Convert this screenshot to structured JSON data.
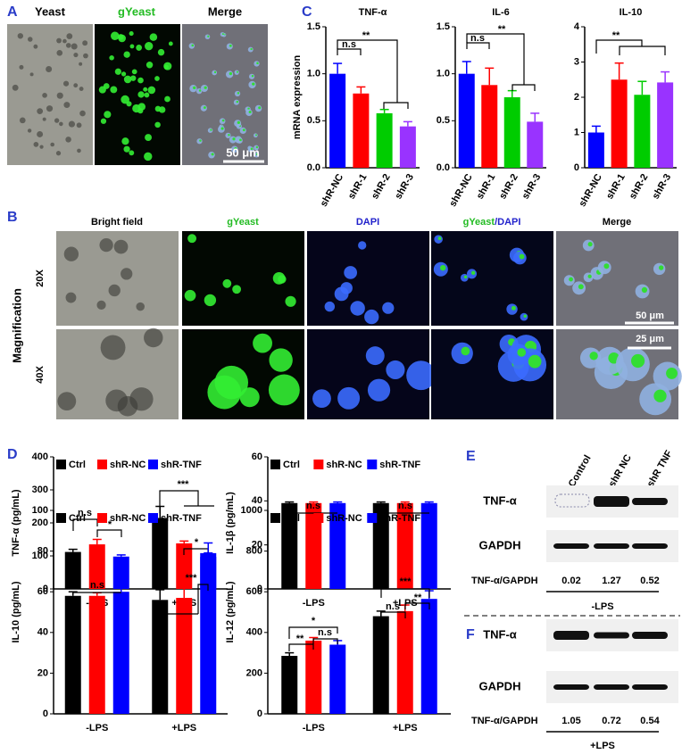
{
  "panels": {
    "A": "A",
    "B": "B",
    "C": "C",
    "D": "D",
    "E": "E",
    "F": "F"
  },
  "panel_a": {
    "labels": [
      "Yeast",
      "gYeast",
      "Merge"
    ],
    "scale": "50 μm"
  },
  "panel_b": {
    "columns": [
      "Bright field",
      "gYeast",
      "DAPI",
      "gYeast",
      "/DAPI",
      "Merge"
    ],
    "rows": [
      "20X",
      "40X"
    ],
    "row_title": "Magnification",
    "scales": [
      "50 μm",
      "25 μm"
    ]
  },
  "western_blot": {
    "lanes": [
      "Control",
      "shR NC",
      "shR TNF"
    ],
    "E": {
      "rows": [
        "TNF-α",
        "GAPDH"
      ],
      "ratio_label": "TNF-α/GAPDH",
      "ratios": [
        "0.02",
        "1.27",
        "0.52"
      ],
      "condition": "-LPS"
    },
    "F": {
      "rows": [
        "TNF-α",
        "GAPDH"
      ],
      "ratio_label": "TNF-α/GAPDH",
      "ratios": [
        "1.05",
        "0.72",
        "0.54"
      ],
      "condition": "+LPS"
    }
  },
  "chart_data": [
    {
      "type": "bar",
      "title": "TNF-α",
      "ylabel": "mRNA expression",
      "categories": [
        "shR-NC",
        "shR-1",
        "shR-2",
        "shR-3"
      ],
      "values": [
        1.0,
        0.79,
        0.58,
        0.44
      ],
      "errors": [
        0.11,
        0.07,
        0.04,
        0.05
      ],
      "colors": [
        "#0000ff",
        "#ff0000",
        "#00cc00",
        "#9933ff"
      ],
      "ylim": [
        0,
        1.5
      ],
      "yticks": [
        {
          "value": 0,
          "label": "0.0"
        },
        {
          "value": 0.5,
          "label": "0.5"
        },
        {
          "value": 1,
          "label": "1.0"
        },
        {
          "value": 1.5,
          "label": "1.5"
        }
      ],
      "annotations": [
        "n.s",
        "**"
      ]
    },
    {
      "type": "bar",
      "title": "IL-6",
      "categories": [
        "shR-NC",
        "shR-1",
        "shR-2",
        "shR-3"
      ],
      "values": [
        1.0,
        0.88,
        0.75,
        0.49
      ],
      "errors": [
        0.13,
        0.18,
        0.07,
        0.09
      ],
      "colors": [
        "#0000ff",
        "#ff0000",
        "#00cc00",
        "#9933ff"
      ],
      "ylim": [
        0,
        1.5
      ],
      "yticks": [
        {
          "value": 0,
          "label": "0.0"
        },
        {
          "value": 0.5,
          "label": "0.5"
        },
        {
          "value": 1,
          "label": "1.0"
        },
        {
          "value": 1.5,
          "label": "1.5"
        }
      ],
      "annotations": [
        "n.s",
        "**"
      ]
    },
    {
      "type": "bar",
      "title": "IL-10",
      "categories": [
        "shR-NC",
        "shR-1",
        "shR-2",
        "shR-3"
      ],
      "values": [
        1.0,
        2.5,
        2.07,
        2.42
      ],
      "errors": [
        0.18,
        0.47,
        0.38,
        0.3
      ],
      "colors": [
        "#0000ff",
        "#ff0000",
        "#00cc00",
        "#9933ff"
      ],
      "ylim": [
        0,
        4
      ],
      "yticks": [
        0,
        1,
        2,
        3,
        4
      ],
      "annotations": [
        "**"
      ]
    },
    {
      "type": "grouped_bar",
      "ylabel": "TNF-α (pg/mL)",
      "categories": [
        "-LPS",
        "+LPS"
      ],
      "series": [
        {
          "name": "Ctrl",
          "color": "#000000",
          "values": [
            112,
            215
          ],
          "errors": [
            8,
            35
          ]
        },
        {
          "name": "shR-NC",
          "color": "#ff0000",
          "values": [
            135,
            138
          ],
          "errors": [
            15,
            7
          ]
        },
        {
          "name": "shR-TNF",
          "color": "#0000ff",
          "values": [
            98,
            97
          ],
          "errors": [
            5,
            12
          ]
        }
      ],
      "ylim": [
        0,
        400
      ],
      "yticks": [
        0,
        100,
        200,
        300,
        400
      ],
      "annotations": [
        "n.s",
        "*",
        "***",
        "*"
      ]
    },
    {
      "type": "grouped_bar",
      "ylabel": "IL-1β (pg/mL)",
      "categories": [
        "-LPS",
        "+LPS"
      ],
      "series": [
        {
          "name": "Ctrl",
          "color": "#000000",
          "values": [
            39,
            39
          ],
          "errors": [
            0.5,
            0.5
          ]
        },
        {
          "name": "shR-NC",
          "color": "#ff0000",
          "values": [
            39,
            39
          ],
          "errors": [
            0.5,
            0.5
          ]
        },
        {
          "name": "shR-TNF",
          "color": "#0000ff",
          "values": [
            39,
            39
          ],
          "errors": [
            0.5,
            0.5
          ]
        }
      ],
      "ylim": [
        0,
        60
      ],
      "yticks": [
        0,
        20,
        40,
        60
      ],
      "annotations": [
        "n.s",
        "n.s"
      ]
    },
    {
      "type": "grouped_bar",
      "ylabel": "IL-10 (pg/mL)",
      "categories": [
        "-LPS",
        "+LPS"
      ],
      "series": [
        {
          "name": "Ctrl",
          "color": "#000000",
          "values": [
            58,
            56
          ],
          "errors": [
            2,
            5
          ]
        },
        {
          "name": "shR-NC",
          "color": "#ff0000",
          "values": [
            58,
            57
          ],
          "errors": [
            1.5,
            6
          ]
        },
        {
          "name": "shR-TNF",
          "color": "#0000ff",
          "values": [
            60,
            79
          ],
          "errors": [
            3,
            5
          ]
        }
      ],
      "ylim": [
        0,
        100
      ],
      "yticks": [
        0,
        20,
        40,
        60,
        80,
        100
      ],
      "annotations": [
        "n.s",
        "***"
      ]
    },
    {
      "type": "grouped_bar",
      "ylabel": "IL-12 (pg/mL)",
      "categories": [
        "-LPS",
        "+LPS"
      ],
      "series": [
        {
          "name": "Ctrl",
          "color": "#000000",
          "values": [
            285,
            480
          ],
          "errors": [
            15,
            25
          ]
        },
        {
          "name": "shR-NC",
          "color": "#ff0000",
          "values": [
            360,
            505
          ],
          "errors": [
            15,
            30
          ]
        },
        {
          "name": "shR-TNF",
          "color": "#0000ff",
          "values": [
            340,
            565
          ],
          "errors": [
            20,
            40
          ]
        }
      ],
      "ylim": [
        0,
        1000
      ],
      "yticks": [
        0,
        200,
        400,
        600,
        800,
        1000
      ],
      "annotations": [
        "**",
        "n.s",
        "*",
        "***",
        "**",
        "n.s"
      ]
    }
  ]
}
